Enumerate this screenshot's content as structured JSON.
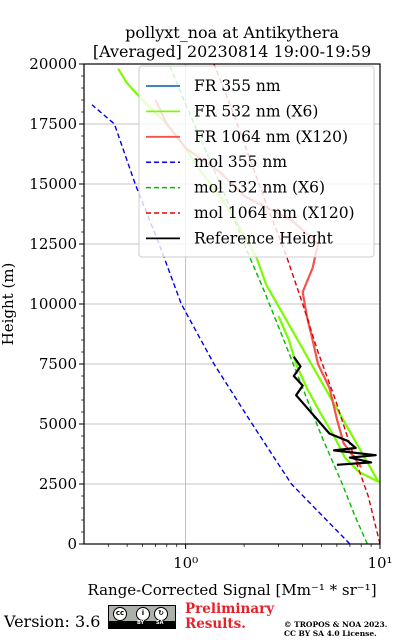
{
  "chart_data": {
    "type": "line",
    "title_line1": "pollyxt_noa at Antikythera",
    "title_line2": "[Averaged] 20230814 19:00-19:59",
    "xlabel": "Range-Corrected Signal [Mm⁻¹ * sr⁻¹]",
    "ylabel": "Height (m)",
    "xscale": "log",
    "xlim": [
      0.3,
      10
    ],
    "ylim": [
      0,
      20000
    ],
    "x_tick_labels": [
      "10⁰",
      "10¹"
    ],
    "x_tick_values": [
      1,
      10
    ],
    "y_ticks": [
      0,
      2500,
      5000,
      7500,
      10000,
      12500,
      15000,
      17500,
      20000
    ],
    "y_tick_labels": [
      "0",
      "2500",
      "5000",
      "7500",
      "10000",
      "12500",
      "15000",
      "17500",
      "20000"
    ],
    "grid": true,
    "legend_position": "top-right",
    "series": [
      {
        "name": "FR 355 nm",
        "color": "#1f77b4",
        "style": "solid",
        "points": []
      },
      {
        "name": "FR 532 nm (X6)",
        "color": "#7cfc00",
        "style": "solid",
        "points": [
          [
            3.0,
            9500
          ],
          [
            3.4,
            8500
          ],
          [
            3.7,
            7500
          ],
          [
            4.2,
            6500
          ],
          [
            4.9,
            5500
          ],
          [
            5.8,
            4500
          ],
          [
            6.6,
            3600
          ],
          [
            7.8,
            3000
          ],
          [
            9.8,
            2600
          ],
          [
            2.6,
            10800
          ],
          [
            2.3,
            12000
          ],
          [
            1.8,
            13500
          ],
          [
            1.5,
            14500
          ],
          [
            1.2,
            15500
          ],
          [
            1.0,
            16500
          ],
          [
            0.8,
            17500
          ],
          [
            0.6,
            18500
          ],
          [
            0.5,
            19200
          ],
          [
            0.45,
            19800
          ]
        ]
      },
      {
        "name": "FR 1064 nm (X120)",
        "color": "#f4524c",
        "style": "solid",
        "points": [
          [
            8.0,
            3200
          ],
          [
            6.5,
            4200
          ],
          [
            6.0,
            5200
          ],
          [
            5.5,
            6500
          ],
          [
            4.8,
            7500
          ],
          [
            4.5,
            8500
          ],
          [
            4.2,
            9500
          ],
          [
            4.0,
            10500
          ],
          [
            4.5,
            11500
          ],
          [
            4.8,
            12500
          ],
          [
            3.5,
            13500
          ],
          [
            2.0,
            14500
          ],
          [
            1.5,
            15500
          ],
          [
            1.0,
            16500
          ],
          [
            0.8,
            17500
          ],
          [
            0.7,
            18500
          ]
        ]
      },
      {
        "name": "mol 355 nm",
        "color": "#0000ee",
        "style": "dashed",
        "points": [
          [
            7.0,
            0
          ],
          [
            3.5,
            2500
          ],
          [
            2.2,
            5000
          ],
          [
            1.4,
            7500
          ],
          [
            0.95,
            10000
          ],
          [
            0.73,
            12500
          ],
          [
            0.55,
            15000
          ],
          [
            0.43,
            17500
          ],
          [
            0.33,
            18300
          ]
        ]
      },
      {
        "name": "mol 532 nm (X6)",
        "color": "#00bb00",
        "style": "dashed",
        "points": [
          [
            8.6,
            0
          ],
          [
            7.4,
            1200
          ],
          [
            6.4,
            2500
          ],
          [
            5.0,
            4500
          ],
          [
            4.0,
            6500
          ],
          [
            3.2,
            8500
          ],
          [
            2.55,
            10500
          ],
          [
            2.0,
            12500
          ],
          [
            1.6,
            14500
          ],
          [
            1.25,
            16500
          ],
          [
            0.98,
            18500
          ],
          [
            0.82,
            20000
          ]
        ]
      },
      {
        "name": "mol 1064 nm (X120)",
        "color": "#dd0000",
        "style": "dashed",
        "points": [
          [
            10.0,
            0
          ],
          [
            8.7,
            2000
          ],
          [
            7.1,
            4000
          ],
          [
            5.9,
            6000
          ],
          [
            4.8,
            8000
          ],
          [
            4.0,
            10000
          ],
          [
            3.3,
            12000
          ],
          [
            2.65,
            14000
          ],
          [
            2.15,
            16000
          ],
          [
            1.75,
            18000
          ],
          [
            1.4,
            20000
          ]
        ]
      },
      {
        "name": "Reference Height",
        "color": "#000000",
        "style": "solid",
        "points": [
          [
            3.6,
            7800
          ],
          [
            3.9,
            7400
          ],
          [
            3.6,
            7000
          ],
          [
            4.0,
            6600
          ],
          [
            3.7,
            6200
          ],
          [
            5.5,
            4600
          ],
          [
            6.8,
            4300
          ],
          [
            7.5,
            4000
          ],
          [
            5.8,
            3900
          ],
          [
            9.5,
            3700
          ],
          [
            7.0,
            3600
          ],
          [
            9.0,
            3400
          ],
          [
            6.0,
            3300
          ]
        ]
      }
    ]
  },
  "footer": {
    "version": "Version: 3.6",
    "license_badge": "cc-by-sa-icon",
    "preliminary_line1": "Preliminary",
    "preliminary_line2": "Results.",
    "copyright_line1": "© TROPOS & NOA 2023.",
    "copyright_line2": "CC BY SA 4.0 License."
  }
}
